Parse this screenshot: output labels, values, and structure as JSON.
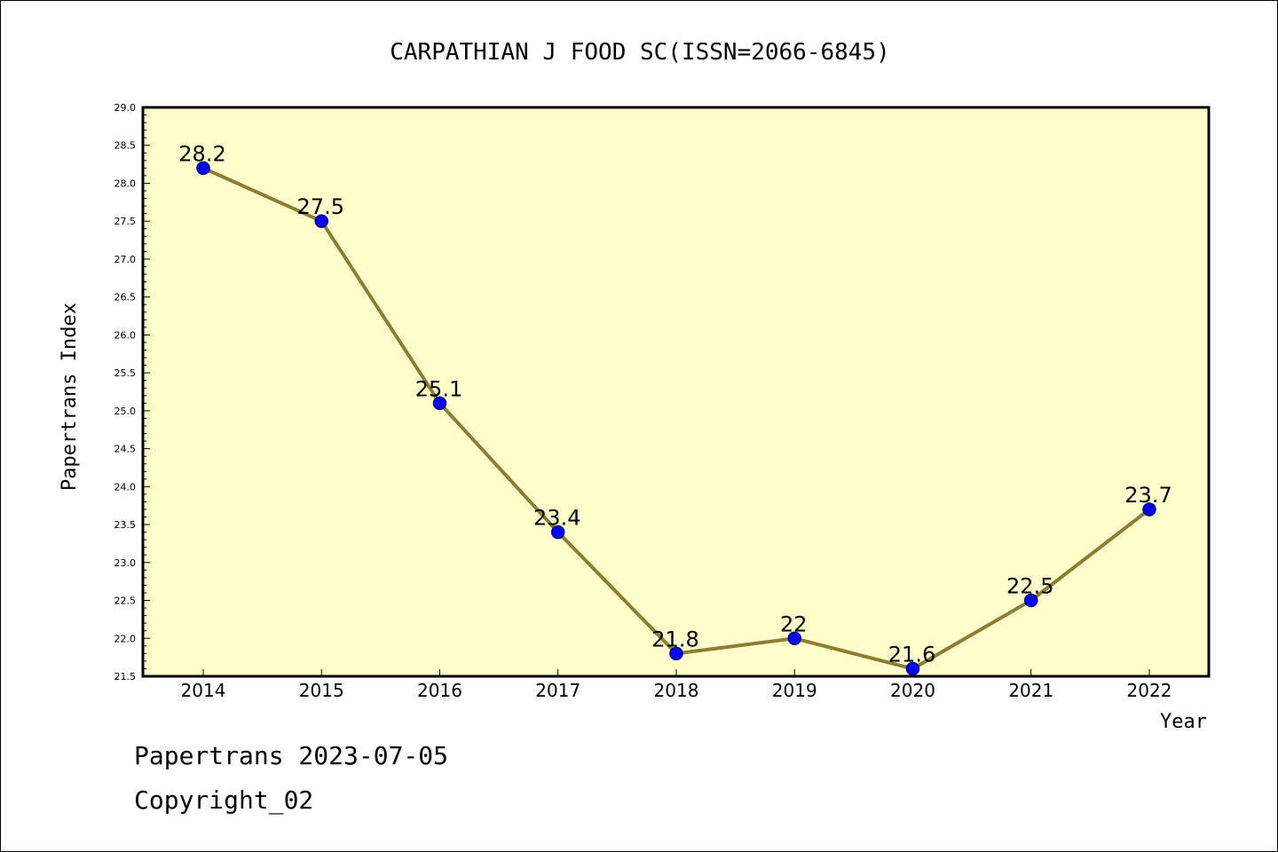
{
  "chart_data": {
    "type": "line",
    "title": "CARPATHIAN J FOOD SC(ISSN=2066-6845)",
    "xlabel": "Year",
    "ylabel": "Papertrans Index",
    "categories": [
      "2014",
      "2015",
      "2016",
      "2017",
      "2018",
      "2019",
      "2020",
      "2021",
      "2022"
    ],
    "values": [
      28.2,
      27.5,
      25.1,
      23.4,
      21.8,
      22,
      21.6,
      22.5,
      23.7
    ],
    "data_labels": [
      "28.2",
      "27.5",
      "25.1",
      "23.4",
      "21.8",
      "22",
      "21.6",
      "22.5",
      "23.7"
    ],
    "ylim": [
      21.5,
      29.0
    ],
    "yticks": [
      "21.5",
      "22.0",
      "22.5",
      "23.0",
      "23.5",
      "24.0",
      "24.5",
      "25.0",
      "25.5",
      "26.0",
      "26.5",
      "27.0",
      "27.5",
      "28.0",
      "28.5",
      "29.0"
    ],
    "grid": false,
    "legend": "none",
    "colors": {
      "plot_background": "#ffffcc",
      "line": "#8b7d32",
      "marker": "#0000ff",
      "marker_edge": "#000080"
    }
  },
  "footer": {
    "line1": "Papertrans 2023-07-05",
    "line2": "Copyright_02"
  }
}
